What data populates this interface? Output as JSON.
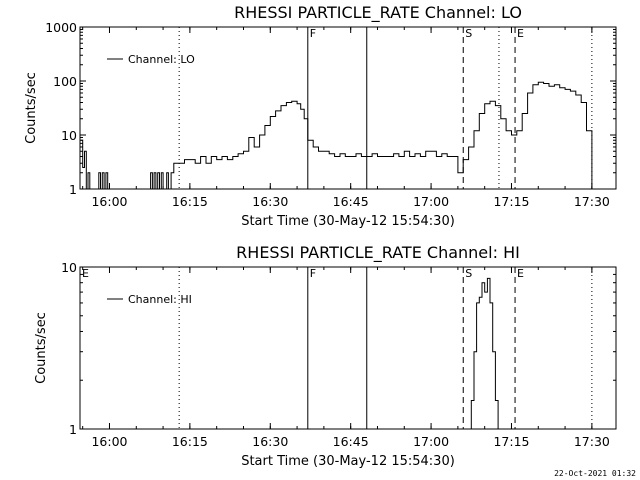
{
  "chart_data": [
    {
      "type": "line",
      "title": "RHESSI PARTICLE_RATE Channel: LO",
      "xlabel": "Start Time (30-May-12 15:54:30)",
      "ylabel": "Counts/sec",
      "yscale": "log",
      "xlim": [
        "15:54:30",
        "17:34:30"
      ],
      "ylim": [
        1,
        1000
      ],
      "x_ticks": [
        "16:00",
        "16:15",
        "16:30",
        "16:45",
        "17:00",
        "17:15",
        "17:30"
      ],
      "y_ticks": [
        "1",
        "10",
        "100",
        "1000"
      ],
      "grid": false,
      "legend": {
        "position": "top-left",
        "entries": [
          "Channel: LO"
        ]
      },
      "series": [
        {
          "name": "Channel: LO",
          "x": [
            "15:54:40",
            "15:55:00",
            "15:55:20",
            "15:55:40",
            "15:56:00",
            "15:56:20",
            "15:57:00",
            "15:57:20",
            "15:57:40",
            "15:58:00",
            "15:58:20",
            "15:58:40",
            "15:59:00",
            "15:59:20",
            "15:59:40",
            "16:07:20",
            "16:07:40",
            "16:08:00",
            "16:08:20",
            "16:08:40",
            "16:09:00",
            "16:09:20",
            "16:09:40",
            "16:10:00",
            "16:10:40",
            "16:11:00",
            "16:11:30",
            "16:12:00",
            "16:13:00",
            "16:14:00",
            "16:15:00",
            "16:16:00",
            "16:17:00",
            "16:18:00",
            "16:19:00",
            "16:20:00",
            "16:21:00",
            "16:22:00",
            "16:23:00",
            "16:24:00",
            "16:25:00",
            "16:26:00",
            "16:27:00",
            "16:28:00",
            "16:29:00",
            "16:30:00",
            "16:31:00",
            "16:32:00",
            "16:33:00",
            "16:34:00",
            "16:35:00",
            "16:35:40",
            "16:36:20",
            "16:37:00",
            "16:38:00",
            "16:39:00",
            "16:40:00",
            "16:41:00",
            "16:42:00",
            "16:43:00",
            "16:44:00",
            "16:45:00",
            "16:46:00",
            "16:47:00",
            "16:48:00",
            "16:49:00",
            "16:50:00",
            "16:51:00",
            "16:52:00",
            "16:53:00",
            "16:54:00",
            "16:55:00",
            "16:56:00",
            "16:57:00",
            "16:58:00",
            "16:59:00",
            "17:00:00",
            "17:01:00",
            "17:02:00",
            "17:03:00",
            "17:04:00",
            "17:05:00",
            "17:06:00",
            "17:07:00",
            "17:08:00",
            "17:09:00",
            "17:10:00",
            "17:11:00",
            "17:12:00",
            "17:13:00",
            "17:14:00",
            "17:15:00",
            "17:16:00",
            "17:17:00",
            "17:18:00",
            "17:19:00",
            "17:20:00",
            "17:21:00",
            "17:22:00",
            "17:23:00",
            "17:24:00",
            "17:25:00",
            "17:26:00",
            "17:27:00",
            "17:28:00",
            "17:29:00",
            "17:30:00"
          ],
          "y": [
            8,
            2.5,
            5,
            1,
            2,
            1,
            1,
            1,
            1,
            2,
            1,
            2,
            1,
            2,
            1,
            1,
            2,
            1,
            2,
            1,
            2,
            1,
            2,
            1,
            2,
            1,
            2,
            3,
            3,
            3.5,
            3.5,
            3,
            4,
            3,
            4,
            3.5,
            4,
            3.5,
            4,
            4.5,
            5,
            9,
            6,
            10,
            15,
            22,
            28,
            35,
            40,
            42,
            38,
            30,
            20,
            8,
            6,
            5,
            5,
            4.5,
            4,
            4.5,
            4,
            4,
            4.5,
            4,
            4,
            4.5,
            4,
            4,
            4,
            4.5,
            4,
            5,
            4,
            4.5,
            4,
            5,
            5,
            4,
            4.5,
            4,
            4,
            2,
            3.5,
            6,
            12,
            25,
            38,
            42,
            35,
            20,
            12,
            10,
            12,
            25,
            60,
            85,
            95,
            90,
            80,
            85,
            75,
            70,
            65,
            55,
            40,
            12,
            1
          ]
        }
      ],
      "annotations": [
        {
          "text": "F",
          "x": "16:37:00",
          "style": "solid"
        },
        {
          "text": "",
          "x": "16:48:00",
          "style": "solid"
        },
        {
          "text": "S",
          "x": "17:06:00",
          "style": "dashed"
        },
        {
          "text": "E",
          "x": "17:15:40",
          "style": "dashed"
        },
        {
          "text": "",
          "x": "17:12:40",
          "style": "dotted"
        },
        {
          "text": "",
          "x": "16:13:00",
          "style": "dotted"
        },
        {
          "text": "",
          "x": "17:30:00",
          "style": "dotted"
        }
      ]
    },
    {
      "type": "line",
      "title": "RHESSI PARTICLE_RATE Channel: HI",
      "xlabel": "Start Time (30-May-12 15:54:30)",
      "ylabel": "Counts/sec",
      "yscale": "log",
      "xlim": [
        "15:54:30",
        "17:34:30"
      ],
      "ylim": [
        1,
        10
      ],
      "x_ticks": [
        "16:00",
        "16:15",
        "16:30",
        "16:45",
        "17:00",
        "17:15",
        "17:30"
      ],
      "y_ticks": [
        "1",
        "10"
      ],
      "grid": false,
      "legend": {
        "position": "top-left",
        "entries": [
          "Channel: HI"
        ]
      },
      "series": [
        {
          "name": "Channel: HI",
          "x": [
            "17:07:00",
            "17:07:30",
            "17:08:00",
            "17:08:30",
            "17:09:00",
            "17:09:30",
            "17:10:00",
            "17:10:30",
            "17:11:00",
            "17:11:30",
            "17:12:00",
            "17:12:30"
          ],
          "y": [
            1,
            1.5,
            3,
            6,
            6.5,
            8,
            7,
            8.5,
            6,
            3,
            1.5,
            1
          ]
        }
      ],
      "annotations": [
        {
          "text": "E",
          "x": "15:54:30",
          "style": "none"
        },
        {
          "text": "F",
          "x": "16:37:00",
          "style": "solid"
        },
        {
          "text": "",
          "x": "16:48:00",
          "style": "solid"
        },
        {
          "text": "S",
          "x": "17:06:00",
          "style": "dashed"
        },
        {
          "text": "E",
          "x": "17:15:40",
          "style": "dashed"
        },
        {
          "text": "",
          "x": "16:13:00",
          "style": "dotted"
        },
        {
          "text": "",
          "x": "17:30:00",
          "style": "dotted"
        }
      ]
    }
  ],
  "footer": {
    "timestamp": "22-Oct-2021 01:32"
  }
}
